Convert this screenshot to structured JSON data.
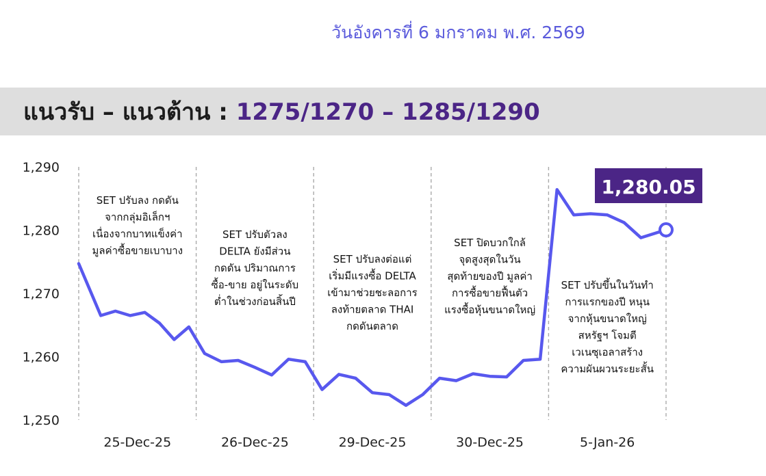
{
  "header": {
    "date": "วันอังคารที่ 6 มกราคม พ.ศ. 2569",
    "title_prefix": "แนวรับ – แนวต้าน : ",
    "title_range": "1275/1270 – 1285/1290"
  },
  "colors": {
    "line": "#5858ee",
    "accent": "#4b2586",
    "banner_bg": "#dedede",
    "date_text": "#5b5bdc",
    "separator": "#aaaaaa"
  },
  "chart_data": {
    "type": "line",
    "title": "",
    "xlabel": "",
    "ylabel": "",
    "ylim": [
      1250,
      1290
    ],
    "yticks": [
      "1,250",
      "1,260",
      "1,270",
      "1,280",
      "1,290"
    ],
    "grid": false,
    "categories": [
      "25-Dec-25",
      "26-Dec-25",
      "29-Dec-25",
      "30-Dec-25",
      "5-Jan-26"
    ],
    "series": [
      {
        "name": "",
        "values": [
          [
            1274.7,
            1266.5,
            1267.2,
            1266.5,
            1267.0,
            1265.3,
            1262.7,
            1264.7
          ],
          [
            1260.5,
            1259.2,
            1259.4,
            1258.3,
            1257.1,
            1259.6,
            1259.2
          ],
          [
            1254.8,
            1257.2,
            1256.6,
            1254.3,
            1254.0,
            1252.3,
            1254.0
          ],
          [
            1256.6,
            1256.2,
            1257.3,
            1256.9,
            1256.8,
            1259.4,
            1259.6
          ],
          [
            1286.4,
            1282.4,
            1282.6,
            1282.4,
            1281.2,
            1278.8,
            1280.05
          ]
        ]
      }
    ],
    "last_value_label": "1,280.05",
    "annotations": [
      [
        "SET ปรับลง กดดัน",
        "จากกลุ่มอิเล็กฯ",
        "เนื่องจากบาทแข็งค่า",
        "มูลค่าซื้อขายเบาบาง"
      ],
      [
        "SET ปรับตัวลง",
        "DELTA ยังมีส่วน",
        "กดดัน ปริมาณการ",
        "ซื้อ-ขาย อยู่ในระดับ",
        "ต่ำในช่วงก่อนสิ้นปี"
      ],
      [
        "SET ปรับลงต่อแต่",
        "เริ่มมีแรงซื้อ DELTA",
        "เข้ามาช่วยชะลอการ",
        "ลงท้ายตลาด THAI",
        "กดดันตลาด"
      ],
      [
        "SET ปิดบวกใกล้",
        "จุดสูงสุดในวัน",
        "สุดท้ายของปี มูลค่า",
        "การซื้อขายฟื้นตัว",
        "แรงซื้อหุ้นขนาดใหญ่"
      ],
      [
        "SET ปรับขึ้นในวันทำ",
        "การแรกของปี หนุน",
        "จากหุ้นขนาดใหญ่",
        "สหรัฐฯ โจมตี",
        "เวเนซุเอลาสร้าง",
        "ความผันผวนระยะสั้น"
      ]
    ]
  }
}
